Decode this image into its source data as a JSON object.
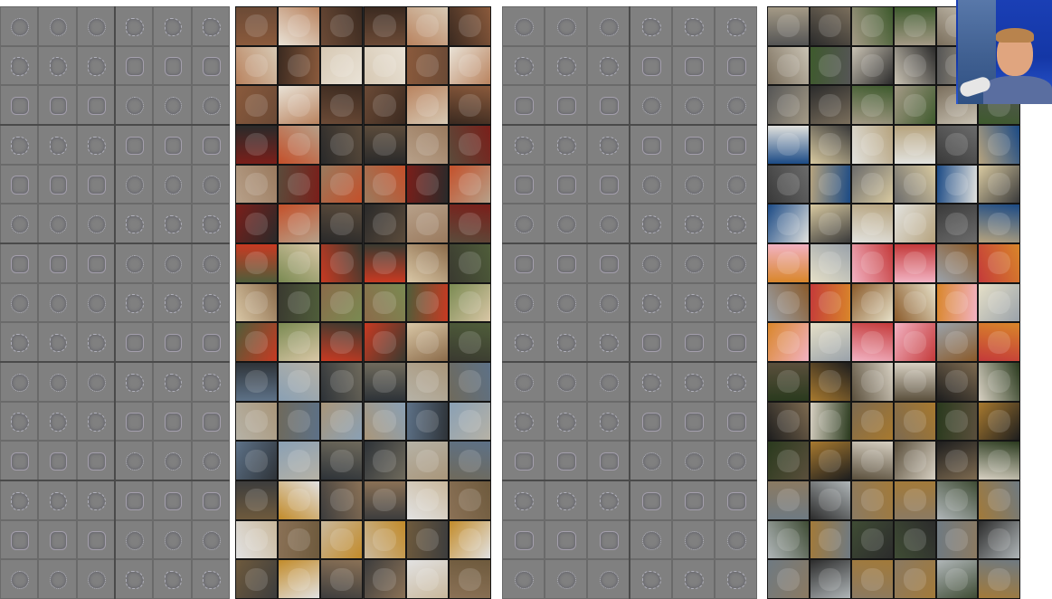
{
  "figure": {
    "layer_sets": [
      {
        "id": "set-a",
        "groups": 5,
        "tiles_per_group_side": 3,
        "patch_palettes": [
          [
            "#8a5a3c",
            "#e9e2d6",
            "#6b4a36",
            "#b9835f",
            "#3b2a20",
            "#d7c9b4"
          ],
          [
            "#7a1f1a",
            "#c4502a",
            "#2a2a2a",
            "#b7a089",
            "#5b4b3b",
            "#9a7a5e"
          ],
          [
            "#4f5d3a",
            "#7a8a52",
            "#c83a22",
            "#d9c7a6",
            "#3a3a30",
            "#8b6b4a"
          ],
          [
            "#5d7187",
            "#8aa0b4",
            "#2e3338",
            "#b6b2a6",
            "#6f6a5c",
            "#a9967a"
          ],
          [
            "#6e5a3d",
            "#c28b2a",
            "#3d3d3d",
            "#e2e2e2",
            "#8a7156",
            "#c9b89c"
          ]
        ]
      },
      {
        "id": "set-b",
        "groups": 5,
        "tiles_per_group_side": 3,
        "patch_palettes": [
          [
            "#555555",
            "#2b2b2b",
            "#a49a86",
            "#7a6e5c",
            "#3e5a2d",
            "#c9c2b3"
          ],
          [
            "#1b4a85",
            "#d8c9a0",
            "#e2e2de",
            "#3a3a3a",
            "#b6a37e",
            "#6b6b6b"
          ],
          [
            "#d9862a",
            "#e6e0c8",
            "#f2b2c2",
            "#9aa2aa",
            "#c43a3a",
            "#8a5a2a"
          ],
          [
            "#2a3a1e",
            "#a7792f",
            "#5a4f3c",
            "#1e1e1e",
            "#d7d0c2",
            "#7d6a50"
          ],
          [
            "#6f7a82",
            "#2c2c2c",
            "#8b7a62",
            "#b0b6b8",
            "#a27a3a",
            "#3f4c34"
          ]
        ]
      }
    ]
  }
}
